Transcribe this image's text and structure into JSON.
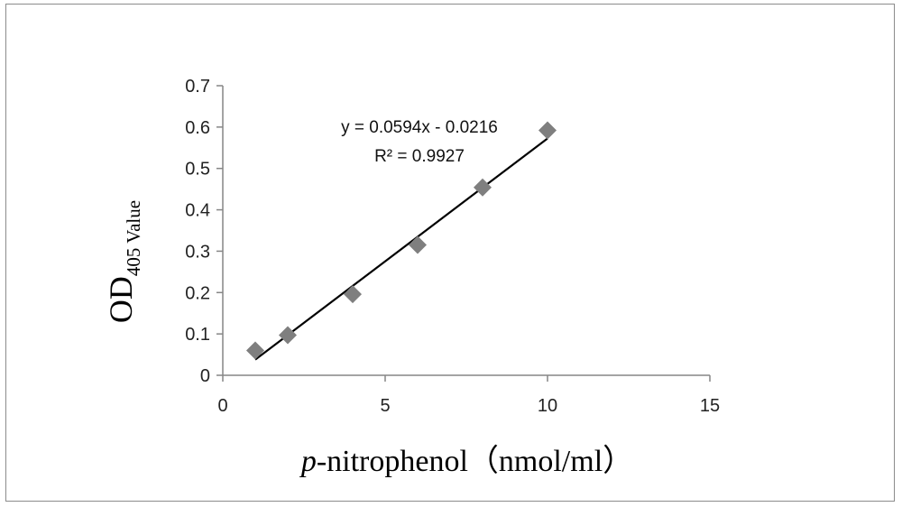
{
  "chart_data": {
    "type": "scatter",
    "xlabel": {
      "italic_prefix": "p",
      "main": "-nitrophenol（nmol/ml）"
    },
    "ylabel": {
      "main": "OD",
      "subscript": "405",
      "suffix": " Value"
    },
    "xlim": [
      0,
      15
    ],
    "ylim": [
      0,
      0.7
    ],
    "x_ticks": [
      0,
      5,
      10,
      15
    ],
    "y_ticks": [
      0,
      0.1,
      0.2,
      0.3,
      0.4,
      0.5,
      0.6,
      0.7
    ],
    "grid": false,
    "series": [
      {
        "marker": "diamond",
        "color": "#7f7f7f",
        "points": [
          {
            "x": 1,
            "y": 0.06
          },
          {
            "x": 2,
            "y": 0.097
          },
          {
            "x": 4,
            "y": 0.196
          },
          {
            "x": 6,
            "y": 0.315
          },
          {
            "x": 8,
            "y": 0.454
          },
          {
            "x": 10,
            "y": 0.592
          }
        ]
      }
    ],
    "trendline": {
      "type": "linear",
      "slope": 0.0594,
      "intercept": -0.0216,
      "x_range": [
        1,
        10
      ],
      "color": "#000000"
    },
    "annotations": {
      "equation": "y = 0.0594x - 0.0216",
      "r_squared": "R² = 0.9927"
    }
  }
}
